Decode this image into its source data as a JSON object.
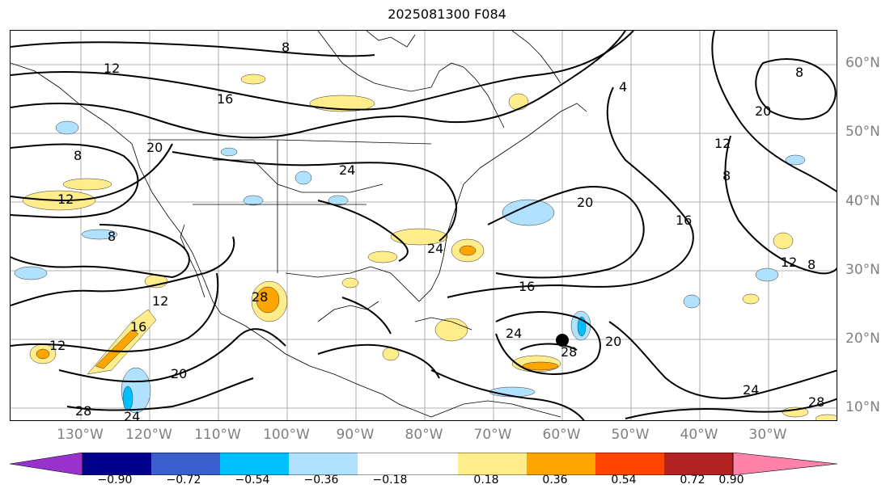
{
  "title": "2025081300 F084",
  "lat_labels": [
    "60°N",
    "50°N",
    "40°N",
    "30°N",
    "20°N",
    "10°N"
  ],
  "lon_labels": [
    "130°W",
    "120°W",
    "110°W",
    "100°W",
    "90°W",
    "80°W",
    "70°W",
    "60°W",
    "50°W",
    "40°W",
    "30°W"
  ],
  "colorbar": {
    "colors": [
      "#9932cc",
      "#00008b",
      "#3a5fcd",
      "#00bfff",
      "#b0e2ff",
      "#ffffff",
      "#ffec8b",
      "#ffa500",
      "#ff4500",
      "#b22222",
      "#ff82ab"
    ],
    "ticks": [
      "−0.90",
      "−0.72",
      "−0.54",
      "−0.36",
      "−0.18",
      "0.18",
      "0.36",
      "0.54",
      "0.72",
      "0.90"
    ]
  },
  "contour_labels": [
    "8",
    "12",
    "16",
    "4",
    "20",
    "24",
    "8",
    "12",
    "8",
    "16",
    "20",
    "8",
    "24",
    "12",
    "16",
    "20",
    "16",
    "12",
    "12",
    "28",
    "20",
    "24",
    "28",
    "24",
    "28",
    "20",
    "28",
    "24",
    "12",
    "8",
    "8"
  ],
  "storm_marker": "tropical cyclone position"
}
